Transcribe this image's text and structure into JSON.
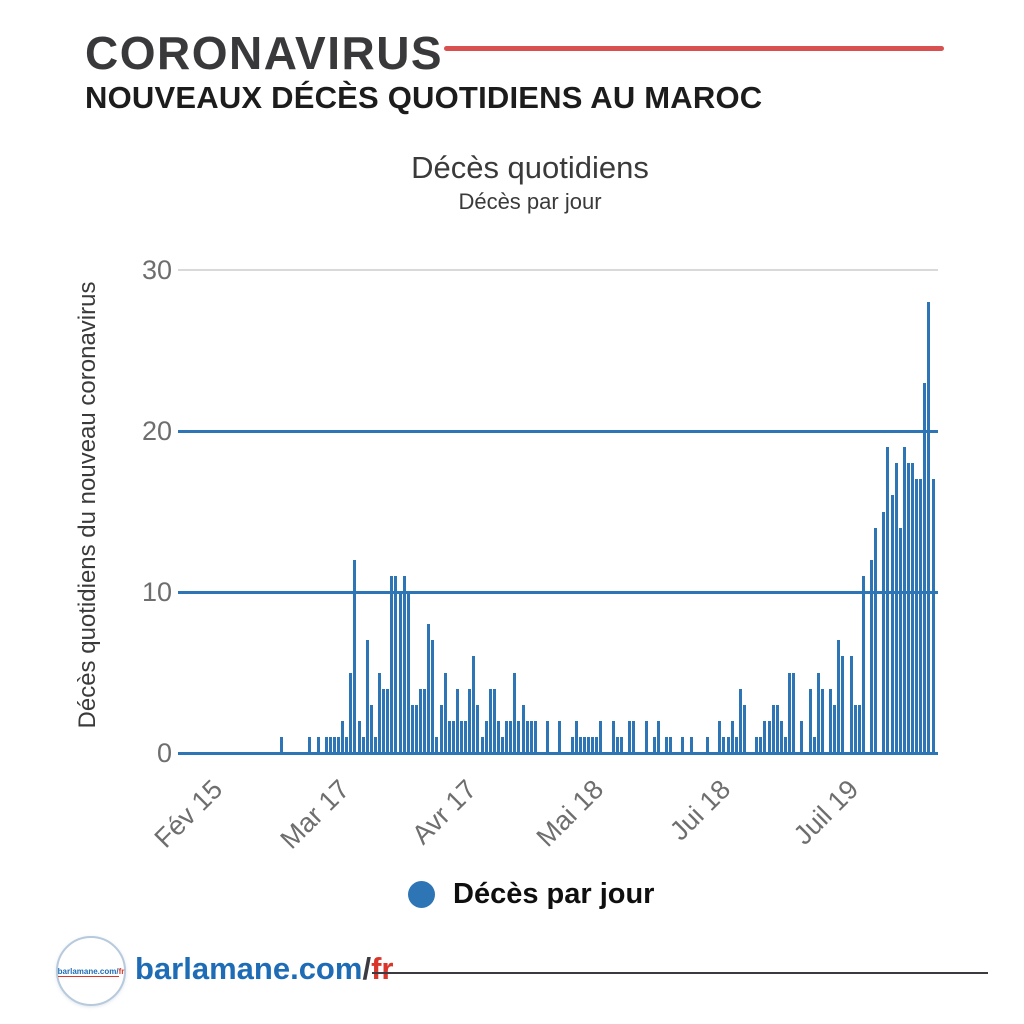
{
  "header": {
    "title": "CORONAVIRUS",
    "subtitle": "NOUVEAUX DÉCÈS QUOTIDIENS AU MAROC",
    "accent_color": "#d95050"
  },
  "chart": {
    "title": "Décès quotidiens",
    "subtitle": "Décès par jour",
    "y_axis_label": "Décès quotidiens du nouveau coronavirus"
  },
  "legend": {
    "label": "Décès par jour",
    "marker_color": "#2e75b5"
  },
  "chart_data": {
    "type": "bar",
    "title": "Décès quotidiens",
    "subtitle": "Décès par jour",
    "ylabel": "Décès quotidiens du nouveau coronavirus",
    "series_name": "Décès par jour",
    "ylim": [
      0,
      30
    ],
    "yticks": [
      0,
      10,
      20,
      30
    ],
    "emphasized_gridlines": [
      0,
      10,
      20
    ],
    "grid_emphasis_color": "#2e75b5",
    "grid_light_color": "#d9d9d9",
    "bar_color": "#2e75b5",
    "tick_text_color": "#6e6e6e",
    "xtick_labels": [
      "Fév 15",
      "Mar 17",
      "Avr 17",
      "Mai 18",
      "Jui 18",
      "Juil 19"
    ],
    "xtick_day_index": [
      0,
      31,
      62,
      93,
      124,
      155
    ],
    "x_is_daily_from": "Fév 15",
    "values": [
      0,
      0,
      0,
      0,
      0,
      0,
      0,
      0,
      0,
      0,
      0,
      0,
      0,
      0,
      0,
      0,
      0,
      0,
      0,
      0,
      0,
      1,
      0,
      0,
      0,
      0,
      0,
      0,
      1,
      0,
      1,
      0,
      1,
      1,
      1,
      1,
      2,
      1,
      5,
      12,
      2,
      1,
      7,
      3,
      1,
      5,
      4,
      4,
      11,
      11,
      10,
      11,
      10,
      3,
      3,
      4,
      4,
      8,
      7,
      1,
      3,
      5,
      2,
      2,
      4,
      2,
      2,
      4,
      6,
      3,
      1,
      2,
      4,
      4,
      2,
      1,
      2,
      2,
      5,
      2,
      3,
      2,
      2,
      2,
      0,
      0,
      2,
      0,
      0,
      2,
      0,
      0,
      1,
      2,
      1,
      1,
      1,
      1,
      1,
      2,
      0,
      0,
      2,
      1,
      1,
      0,
      2,
      2,
      0,
      0,
      2,
      0,
      1,
      2,
      0,
      1,
      1,
      0,
      0,
      1,
      0,
      1,
      0,
      0,
      0,
      1,
      0,
      0,
      2,
      1,
      1,
      2,
      1,
      4,
      3,
      0,
      0,
      1,
      1,
      2,
      2,
      3,
      3,
      2,
      1,
      5,
      5,
      0,
      2,
      0,
      4,
      1,
      5,
      4,
      0,
      4,
      3,
      7,
      6,
      0,
      6,
      3,
      3,
      11,
      0,
      12,
      14,
      0,
      15,
      19,
      16,
      18,
      14,
      19,
      18,
      18,
      17,
      17,
      23,
      28,
      17
    ]
  },
  "footer": {
    "brand_main": "barlamane.com",
    "brand_slash": "/",
    "brand_suffix": "fr",
    "brand_main_color": "#1e6cb5",
    "brand_suffix_color": "#d9352b",
    "logo_main": "barlamane.com/",
    "logo_suffix": "fr"
  }
}
